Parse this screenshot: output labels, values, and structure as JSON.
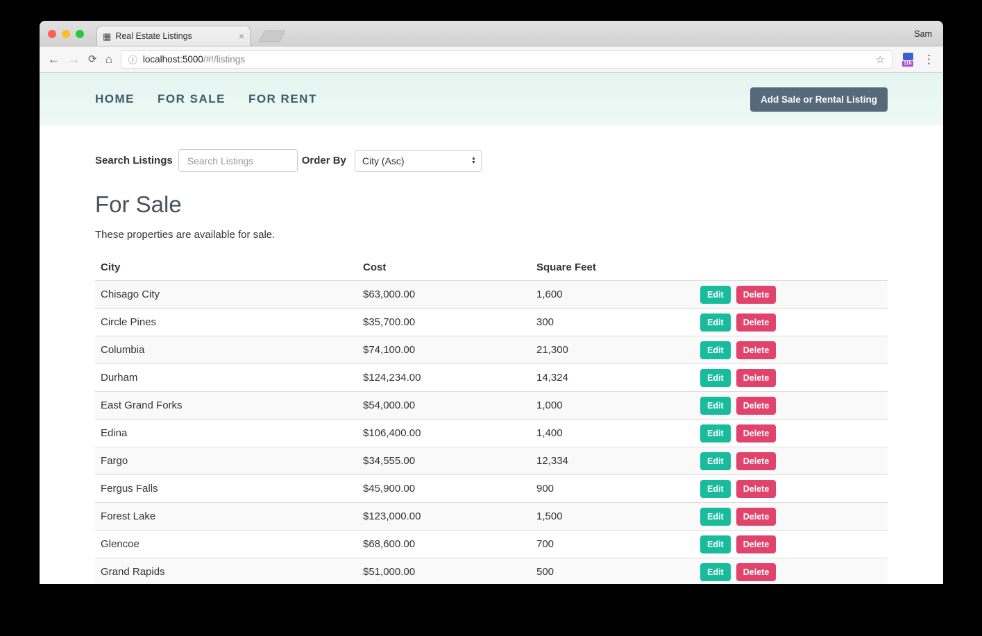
{
  "browser": {
    "user": "Sam",
    "tab": {
      "title": "Real Estate Listings",
      "close": "×"
    },
    "toolbar": {
      "url_host": "localhost:5000",
      "url_path": "/#!/listings",
      "extension_badge": "11h"
    }
  },
  "nav": {
    "items": [
      "HOME",
      "FOR SALE",
      "FOR RENT"
    ],
    "add_button_label": "Add Sale or Rental Listing"
  },
  "filters": {
    "search_label": "Search Listings",
    "search_placeholder": "Search Listings",
    "order_label": "Order By",
    "order_value": "City (Asc)"
  },
  "page": {
    "title": "For Sale",
    "subtitle": "These properties are available for sale."
  },
  "table": {
    "columns": {
      "city": "City",
      "cost": "Cost",
      "sqft": "Square Feet"
    },
    "actions": {
      "edit": "Edit",
      "delete": "Delete"
    },
    "rows": [
      {
        "city": "Chisago City",
        "cost": "$63,000.00",
        "sqft": "1,600"
      },
      {
        "city": "Circle Pines",
        "cost": "$35,700.00",
        "sqft": "300"
      },
      {
        "city": "Columbia",
        "cost": "$74,100.00",
        "sqft": "21,300"
      },
      {
        "city": "Durham",
        "cost": "$124,234.00",
        "sqft": "14,324"
      },
      {
        "city": "East Grand Forks",
        "cost": "$54,000.00",
        "sqft": "1,000"
      },
      {
        "city": "Edina",
        "cost": "$106,400.00",
        "sqft": "1,400"
      },
      {
        "city": "Fargo",
        "cost": "$34,555.00",
        "sqft": "12,334"
      },
      {
        "city": "Fergus Falls",
        "cost": "$45,900.00",
        "sqft": "900"
      },
      {
        "city": "Forest Lake",
        "cost": "$123,000.00",
        "sqft": "1,500"
      },
      {
        "city": "Glencoe",
        "cost": "$68,600.00",
        "sqft": "700"
      },
      {
        "city": "Grand Rapids",
        "cost": "$51,000.00",
        "sqft": "500"
      }
    ]
  },
  "colors": {
    "edit": "#18bc9c",
    "delete": "#e0446d",
    "add_button": "#56697b",
    "header_bg": "#e4f5f0"
  }
}
